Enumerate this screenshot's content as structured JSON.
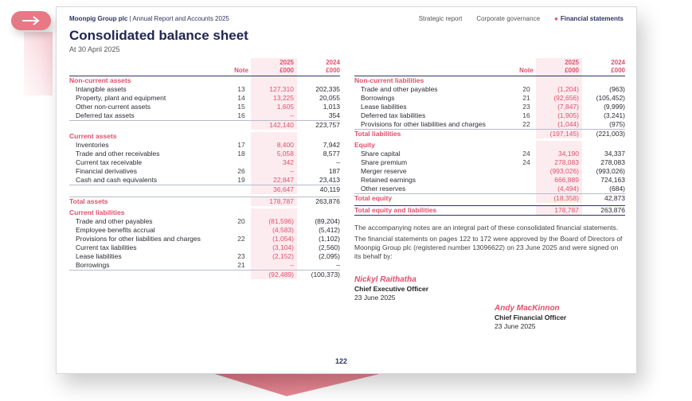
{
  "header": {
    "company": "Moonpig Group plc",
    "separator": "|",
    "report": "Annual Report and Accounts 2025"
  },
  "nav": [
    {
      "label": "Strategic report",
      "active": false
    },
    {
      "label": "Corporate governance",
      "active": false
    },
    {
      "label": "Financial statements",
      "active": true
    }
  ],
  "title": "Consolidated balance sheet",
  "subtitle": "At 30 April 2025",
  "columns": {
    "note": "Note",
    "y2025": "2025",
    "y2025_unit": "£000",
    "y2024": "2024",
    "y2024_unit": "£000"
  },
  "rows": [
    {
      "type": "sec",
      "label": "Non-current assets"
    },
    {
      "type": "item",
      "label": "Intangible assets",
      "note": "13",
      "v25": "127,310",
      "v24": "202,335"
    },
    {
      "type": "item",
      "label": "Property, plant and equipment",
      "note": "14",
      "v25": "13,225",
      "v24": "20,055"
    },
    {
      "type": "item",
      "label": "Other non-current assets",
      "note": "15",
      "v25": "1,605",
      "v24": "1,013"
    },
    {
      "type": "item",
      "label": "Deferred tax assets",
      "note": "16",
      "v25": "–",
      "v24": "354"
    },
    {
      "type": "sub",
      "label": "",
      "note": "",
      "v25": "142,140",
      "v24": "223,757"
    },
    {
      "type": "sec",
      "label": "Current assets"
    },
    {
      "type": "item",
      "label": "Inventories",
      "note": "17",
      "v25": "8,400",
      "v24": "7,942"
    },
    {
      "type": "item",
      "label": "Trade and other receivables",
      "note": "18",
      "v25": "5,058",
      "v24": "8,577"
    },
    {
      "type": "item",
      "label": "Current tax receivable",
      "note": "",
      "v25": "342",
      "v24": "–"
    },
    {
      "type": "item",
      "label": "Financial derivatives",
      "note": "26",
      "v25": "–",
      "v24": "187"
    },
    {
      "type": "item",
      "label": "Cash and cash equivalents",
      "note": "19",
      "v25": "22,847",
      "v24": "23,413"
    },
    {
      "type": "sub",
      "label": "",
      "note": "",
      "v25": "36,647",
      "v24": "40,119"
    },
    {
      "type": "sub",
      "label": "Total assets",
      "note": "",
      "v25": "178,787",
      "v24": "263,876"
    },
    {
      "type": "sec",
      "label": "Current liabilities"
    },
    {
      "type": "item",
      "label": "Trade and other payables",
      "note": "20",
      "v25": "(81,596)",
      "v24": "(89,204)"
    },
    {
      "type": "item",
      "label": "Employee benefits accrual",
      "note": "",
      "v25": "(4,583)",
      "v24": "(5,412)"
    },
    {
      "type": "item",
      "label": "Provisions for other liabilities and charges",
      "note": "22",
      "v25": "(1,054)",
      "v24": "(1,102)"
    },
    {
      "type": "item",
      "label": "Current tax liabilities",
      "note": "",
      "v25": "(3,104)",
      "v24": "(2,560)"
    },
    {
      "type": "item",
      "label": "Lease liabilities",
      "note": "23",
      "v25": "(2,152)",
      "v24": "(2,095)"
    },
    {
      "type": "item",
      "label": "Borrowings",
      "note": "21",
      "v25": "–",
      "v24": "–"
    },
    {
      "type": "sub",
      "label": "",
      "note": "",
      "v25": "(92,489)",
      "v24": "(100,373)"
    },
    {
      "type": "sec",
      "label": "Non-current liabilities"
    },
    {
      "type": "item",
      "label": "Trade and other payables",
      "note": "20",
      "v25": "(1,204)",
      "v24": "(963)"
    },
    {
      "type": "item",
      "label": "Borrowings",
      "note": "21",
      "v25": "(92,656)",
      "v24": "(105,452)"
    },
    {
      "type": "item",
      "label": "Lease liabilities",
      "note": "23",
      "v25": "(7,847)",
      "v24": "(9,999)"
    },
    {
      "type": "item",
      "label": "Deferred tax liabilities",
      "note": "16",
      "v25": "(1,905)",
      "v24": "(3,241)"
    },
    {
      "type": "item",
      "label": "Provisions for other liabilities and charges",
      "note": "22",
      "v25": "(1,044)",
      "v24": "(975)"
    },
    {
      "type": "sub",
      "label": "Total liabilities",
      "note": "",
      "v25": "(197,145)",
      "v24": "(221,003)"
    },
    {
      "type": "sec",
      "label": "Equity"
    },
    {
      "type": "item",
      "label": "Share capital",
      "note": "24",
      "v25": "34,190",
      "v24": "34,337"
    },
    {
      "type": "item",
      "label": "Share premium",
      "note": "24",
      "v25": "278,083",
      "v24": "278,083"
    },
    {
      "type": "item",
      "label": "Merger reserve",
      "note": "",
      "v25": "(993,026)",
      "v24": "(993,026)"
    },
    {
      "type": "item",
      "label": "Retained earnings",
      "note": "",
      "v25": "666,889",
      "v24": "724,163"
    },
    {
      "type": "item",
      "label": "Other reserves",
      "note": "",
      "v25": "(4,494)",
      "v24": "(684)"
    },
    {
      "type": "sub",
      "label": "Total equity",
      "note": "",
      "v25": "(18,358)",
      "v24": "42,873"
    },
    {
      "type": "grand",
      "label": "Total equity and liabilities",
      "note": "",
      "v25": "178,787",
      "v24": "263,876"
    }
  ],
  "notes_text": "The accompanying notes are an integral part of these consolidated financial statements.",
  "approval_text": "The financial statements on pages 122 to 172 were approved by the Board of Directors of Moonpig Group plc (registered number 13096622) on 23 June 2025 and were signed on its behalf by:",
  "signatories": [
    {
      "name": "Nickyl Raithatha",
      "role": "Chief Executive Officer",
      "date": "23 June 2025"
    },
    {
      "name": "Andy MacKinnon",
      "role": "Chief Financial Officer",
      "date": "23 June 2025"
    }
  ],
  "page_number": "122",
  "colors": {
    "accent": "#e0506b",
    "navy": "#2d3560",
    "tab": "#e77886",
    "slab": "#e07a88"
  },
  "icons": {
    "tab": "arrow-right-icon"
  }
}
